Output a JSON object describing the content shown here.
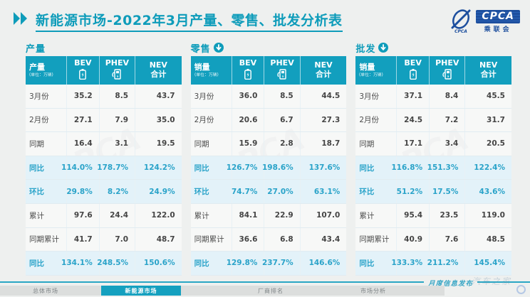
{
  "header": {
    "title_prefix": "新能源市场",
    "title_rest": "-2022年3月产量、零售、批发分析表",
    "logo": {
      "acronym": "CPCA",
      "name": "乘联会"
    }
  },
  "columns": {
    "bev": "BEV",
    "phev": "PHEV",
    "nev_line1": "NEV",
    "nev_line2": "合计",
    "bev_icon": "battery-icon",
    "phev_icon": "charger-icon"
  },
  "tables": [
    {
      "section_title": "产量",
      "measure_label": "产量",
      "unit_label": "(单位：万辆)",
      "rows": [
        {
          "label": "3月份",
          "values": [
            "35.2",
            "8.5",
            "43.7"
          ],
          "highlight": false
        },
        {
          "label": "2月份",
          "values": [
            "27.1",
            "7.9",
            "35.0"
          ],
          "highlight": false
        },
        {
          "label": "同期",
          "values": [
            "16.4",
            "3.1",
            "19.5"
          ],
          "highlight": false
        },
        {
          "label": "同比",
          "values": [
            "114.0%",
            "178.7%",
            "124.2%"
          ],
          "highlight": true
        },
        {
          "label": "环比",
          "values": [
            "29.8%",
            "8.2%",
            "24.9%"
          ],
          "highlight": true
        },
        {
          "label": "累计",
          "values": [
            "97.6",
            "24.4",
            "122.0"
          ],
          "highlight": false
        },
        {
          "label": "同期累计",
          "values": [
            "41.7",
            "7.0",
            "48.7"
          ],
          "highlight": false
        },
        {
          "label": "同比",
          "values": [
            "134.1%",
            "248.5%",
            "150.6%"
          ],
          "highlight": true
        }
      ]
    },
    {
      "section_title": "零售",
      "measure_label": "销量",
      "unit_label": "(单位：万辆)",
      "rows": [
        {
          "label": "3月份",
          "values": [
            "36.0",
            "8.5",
            "44.5"
          ],
          "highlight": false
        },
        {
          "label": "2月份",
          "values": [
            "20.6",
            "6.7",
            "27.3"
          ],
          "highlight": false
        },
        {
          "label": "同期",
          "values": [
            "15.9",
            "2.8",
            "18.7"
          ],
          "highlight": false
        },
        {
          "label": "同比",
          "values": [
            "126.7%",
            "198.6%",
            "137.6%"
          ],
          "highlight": true
        },
        {
          "label": "环比",
          "values": [
            "74.7%",
            "27.0%",
            "63.1%"
          ],
          "highlight": true
        },
        {
          "label": "累计",
          "values": [
            "84.1",
            "22.9",
            "107.0"
          ],
          "highlight": false
        },
        {
          "label": "同期累计",
          "values": [
            "36.6",
            "6.8",
            "43.4"
          ],
          "highlight": false
        },
        {
          "label": "同比",
          "values": [
            "129.8%",
            "237.7%",
            "146.6%"
          ],
          "highlight": true
        }
      ]
    },
    {
      "section_title": "批发",
      "measure_label": "销量",
      "unit_label": "(单位：万辆)",
      "rows": [
        {
          "label": "3月份",
          "values": [
            "37.1",
            "8.4",
            "45.5"
          ],
          "highlight": false
        },
        {
          "label": "2月份",
          "values": [
            "24.5",
            "7.2",
            "31.7"
          ],
          "highlight": false
        },
        {
          "label": "同期",
          "values": [
            "17.1",
            "3.4",
            "20.5"
          ],
          "highlight": false
        },
        {
          "label": "同比",
          "values": [
            "116.8%",
            "151.3%",
            "122.4%"
          ],
          "highlight": true
        },
        {
          "label": "环比",
          "values": [
            "51.2%",
            "17.5%",
            "43.6%"
          ],
          "highlight": true
        },
        {
          "label": "累计",
          "values": [
            "95.4",
            "23.5",
            "119.0"
          ],
          "highlight": false
        },
        {
          "label": "同期累计",
          "values": [
            "40.9",
            "7.6",
            "48.5"
          ],
          "highlight": false
        },
        {
          "label": "同比",
          "values": [
            "133.3%",
            "211.2%",
            "145.4%"
          ],
          "highlight": true
        }
      ]
    }
  ],
  "footer": {
    "note": "月度信息发布",
    "tabs": [
      {
        "label": "总体市场",
        "active": false
      },
      {
        "label": "新能源市场",
        "active": true
      },
      {
        "label": "厂商排名",
        "active": false
      },
      {
        "label": "市场分析",
        "active": false
      }
    ]
  },
  "watermarks": {
    "logo": "CPCA",
    "site": "汽车之家"
  },
  "colors": {
    "accent_teal": "#129fbe",
    "title_teal": "#0e9cba",
    "highlight_row_bg": "#e3f2f9",
    "highlight_text": "#2aa3c9",
    "logo_blue": "#1d4f9e",
    "body_text": "#4c4c4c",
    "page_bg": "#eef0ef"
  }
}
